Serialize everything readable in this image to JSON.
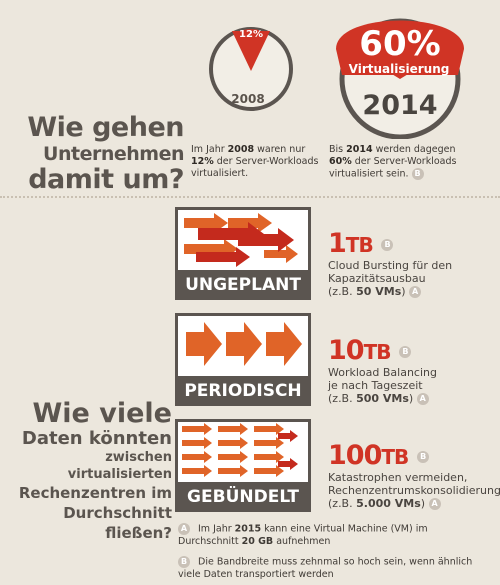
{
  "top": {
    "heading": [
      "Wie gehen",
      "Unternehmen",
      "damit um?"
    ],
    "circle_2008": {
      "year": "2008",
      "percent": "12%"
    },
    "circle_2014": {
      "year": "2014",
      "percent": "60%",
      "label": "Virtualisierung"
    },
    "desc_2008": {
      "pre": "Im Jahr ",
      "year": "2008",
      "mid": " waren nur ",
      "pct": "12%",
      "post": " der Server-Workloads virtualisiert."
    },
    "desc_2014": {
      "pre": "Bis ",
      "year": "2014",
      "mid": " werden dagegen ",
      "pct": "60%",
      "post": " der Server-Workloads virtualisiert sein.",
      "badge": "B"
    }
  },
  "bottom": {
    "heading": [
      "Wie viele",
      "Daten könnten",
      "zwischen virtualisierten",
      "Rechenzentren im",
      "Durchschnitt fließen?"
    ],
    "rows": [
      {
        "label": "UNGEPLANT",
        "amount": "1",
        "unit": "TB",
        "badge": "B",
        "lines": [
          "Cloud Bursting für den",
          "Kapazitätsausbau"
        ],
        "vms_pre": "(z.B. ",
        "vms": "50 VMs",
        "vms_post": ")",
        "vms_badge": "A"
      },
      {
        "label": "PERIODISCH",
        "amount": "10",
        "unit": "TB",
        "badge": "B",
        "lines": [
          "Workload Balancing",
          "je nach Tageszeit"
        ],
        "vms_pre": "(z.B. ",
        "vms": "500 VMs",
        "vms_post": ")",
        "vms_badge": "A"
      },
      {
        "label": "GEBÜNDELT",
        "amount": "100",
        "unit": "TB",
        "badge": "B",
        "lines": [
          "Katastrophen vermeiden,",
          "Rechenzentrumskonsolidierung"
        ],
        "vms_pre": "(z.B. ",
        "vms": "5.000 VMs",
        "vms_post": ")",
        "vms_badge": "A"
      }
    ]
  },
  "footnotes": [
    {
      "badge": "A",
      "pre": "Im Jahr ",
      "b1": "2015",
      "mid": " kann eine Virtual Machine (VM) im Durchschnitt ",
      "b2": "20 GB",
      "post": " aufnehmen"
    },
    {
      "badge": "B",
      "text": "Die Bandbreite muss zehnmal so hoch sein, wenn ähnlich viele Daten transportiert werden"
    }
  ],
  "colors": {
    "accent": "#d03425",
    "orange": "#e06428",
    "dark": "#5b5550",
    "background": "#ece7dd"
  }
}
